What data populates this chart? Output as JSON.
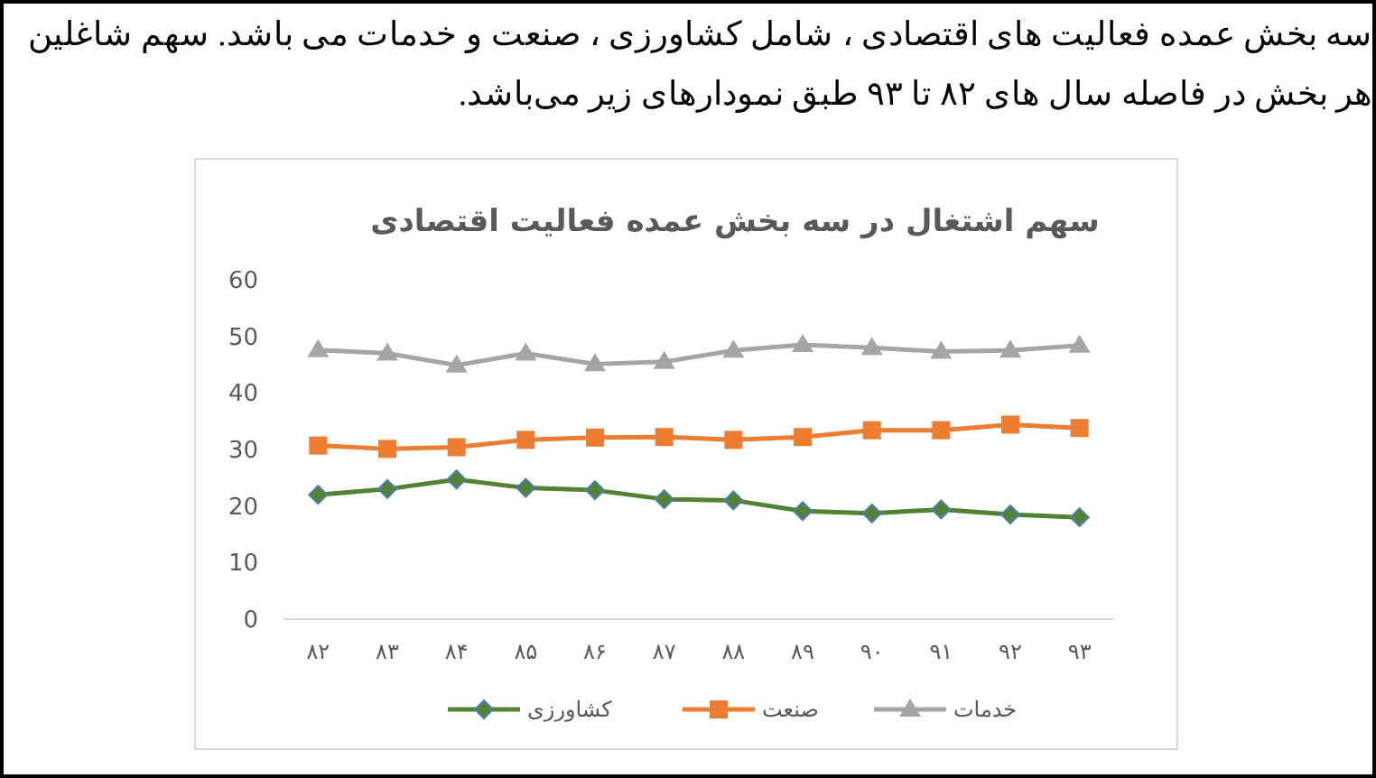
{
  "chart_data": {
    "type": "line",
    "title": "سهم اشتغال در سه بخش عمده فعالیت اقتصادی",
    "annotations": [
      "سه بخش عمده فعالیت های اقتصادی ، شامل کشاورزی ، صنعت و خدمات می باشد. سهم شاغلین هر بخش در فاصله سال های ۸۲  تا ۹۳ طبق نمودارهای زیر می‌باشد."
    ],
    "categories": [
      "۸۲",
      "۸۳",
      "۸۴",
      "۸۵",
      "۸۶",
      "۸۷",
      "۸۸",
      "۸۹",
      "۹۰",
      "۹۱",
      "۹۲",
      "۹۳"
    ],
    "ylim": [
      0,
      60
    ],
    "yticks": [
      0,
      10,
      20,
      30,
      40,
      50,
      60
    ],
    "grid": false,
    "legend": "bottom",
    "line_style": "solid",
    "series": [
      {
        "name": "کشاورزی",
        "color": "#548235",
        "marker": "diamond",
        "values": [
          22.0,
          23.0,
          24.7,
          23.2,
          22.8,
          21.2,
          21.0,
          19.1,
          18.7,
          19.4,
          18.5,
          18.0
        ]
      },
      {
        "name": "صنعت",
        "color": "#ed7d31",
        "marker": "square",
        "values": [
          30.7,
          30.1,
          30.4,
          31.7,
          32.1,
          32.2,
          31.7,
          32.2,
          33.4,
          33.4,
          34.4,
          33.8
        ]
      },
      {
        "name": "خدمات",
        "color": "#a5a5a5",
        "marker": "triangle",
        "values": [
          47.6,
          47.0,
          44.9,
          47.0,
          45.1,
          45.5,
          47.5,
          48.5,
          48.0,
          47.3,
          47.5,
          48.4
        ]
      }
    ]
  }
}
